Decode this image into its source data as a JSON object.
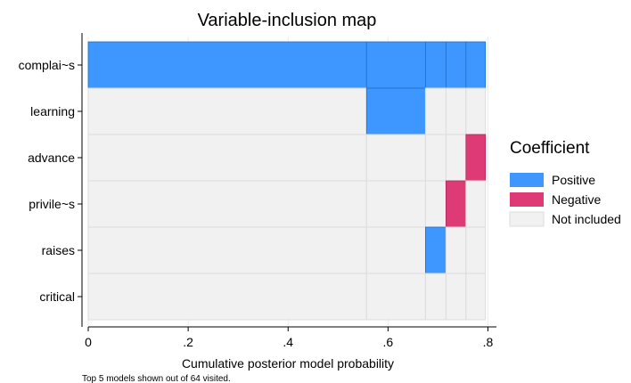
{
  "chart_data": {
    "type": "heatmap",
    "title": "Variable-inclusion map",
    "xlabel": "Cumulative posterior model probability",
    "xlim": [
      0,
      0.8
    ],
    "xticks": [
      "0",
      ".2",
      ".4",
      ".6",
      ".8"
    ],
    "xtick_values": [
      0,
      0.2,
      0.4,
      0.6,
      0.8
    ],
    "note": "Top 5 models shown out of 64 visited.",
    "variables": [
      "complai~s",
      "learning",
      "advance",
      "privile~s",
      "raises",
      "critical"
    ],
    "model_boundaries": [
      0,
      0.557,
      0.675,
      0.716,
      0.756,
      0.795
    ],
    "inclusion": [
      [
        "Positive",
        "Positive",
        "Positive",
        "Positive",
        "Positive"
      ],
      [
        "Not included",
        "Positive",
        "Not included",
        "Not included",
        "Not included"
      ],
      [
        "Not included",
        "Not included",
        "Not included",
        "Not included",
        "Negative"
      ],
      [
        "Not included",
        "Not included",
        "Not included",
        "Negative",
        "Not included"
      ],
      [
        "Not included",
        "Not included",
        "Positive",
        "Not included",
        "Not included"
      ],
      [
        "Not included",
        "Not included",
        "Not included",
        "Not included",
        "Not included"
      ]
    ],
    "legend": {
      "title": "Coefficient",
      "position": "right",
      "entries": [
        {
          "label": "Positive",
          "color": "#3d97ff"
        },
        {
          "label": "Negative",
          "color": "#de3a76"
        },
        {
          "label": "Not included",
          "color": "#f1f1f1"
        }
      ]
    },
    "grid": true
  }
}
